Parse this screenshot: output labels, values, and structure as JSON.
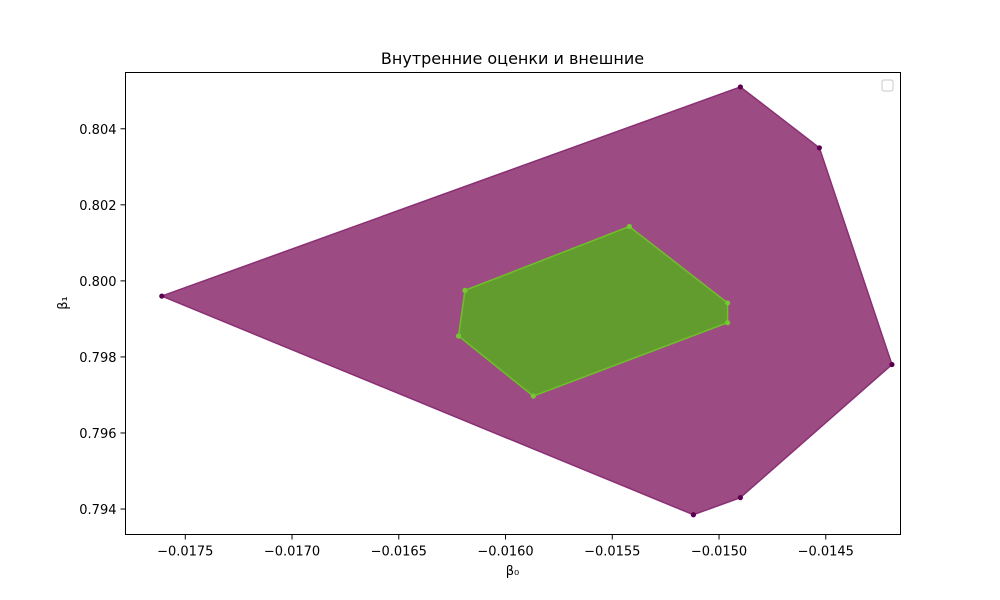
{
  "chart_data": {
    "type": "area",
    "title": "Внутренние оценки и внешние",
    "xlabel": "β₀",
    "ylabel": "β₁",
    "xlim": [
      -0.01778,
      -0.01415
    ],
    "ylim": [
      0.79333,
      0.80548
    ],
    "grid": false,
    "legend": {
      "placement": "top-right",
      "entries": []
    },
    "x_ticks": [
      {
        "value": -0.0175,
        "label": "−0.0175"
      },
      {
        "value": -0.017,
        "label": "−0.0170"
      },
      {
        "value": -0.0165,
        "label": "−0.0165"
      },
      {
        "value": -0.016,
        "label": "−0.0160"
      },
      {
        "value": -0.0155,
        "label": "−0.0155"
      },
      {
        "value": -0.015,
        "label": "−0.0150"
      },
      {
        "value": -0.0145,
        "label": "−0.0145"
      }
    ],
    "y_ticks": [
      {
        "value": 0.794,
        "label": "0.794"
      },
      {
        "value": 0.796,
        "label": "0.796"
      },
      {
        "value": 0.798,
        "label": "0.798"
      },
      {
        "value": 0.8,
        "label": "0.800"
      },
      {
        "value": 0.802,
        "label": "0.802"
      },
      {
        "value": 0.804,
        "label": "0.804"
      }
    ],
    "series": [
      {
        "kind": "outer",
        "fill": "#9c4c82",
        "stroke": "#8a2f74",
        "point_color": "#5b0050",
        "points": [
          {
            "x": -0.01761,
            "y": 0.7996
          },
          {
            "x": -0.0149,
            "y": 0.8051
          },
          {
            "x": -0.01453,
            "y": 0.8035
          },
          {
            "x": -0.01419,
            "y": 0.7978
          },
          {
            "x": -0.0149,
            "y": 0.7943
          },
          {
            "x": -0.01512,
            "y": 0.79385
          }
        ]
      },
      {
        "kind": "inner",
        "fill": "#629c2f",
        "stroke": "#6fbf2a",
        "point_color": "#76c832",
        "points": [
          {
            "x": -0.01619,
            "y": 0.79975
          },
          {
            "x": -0.01542,
            "y": 0.80143
          },
          {
            "x": -0.01496,
            "y": 0.79942
          },
          {
            "x": -0.01496,
            "y": 0.7989
          },
          {
            "x": -0.01587,
            "y": 0.79697
          },
          {
            "x": -0.01622,
            "y": 0.79855
          }
        ]
      }
    ]
  }
}
